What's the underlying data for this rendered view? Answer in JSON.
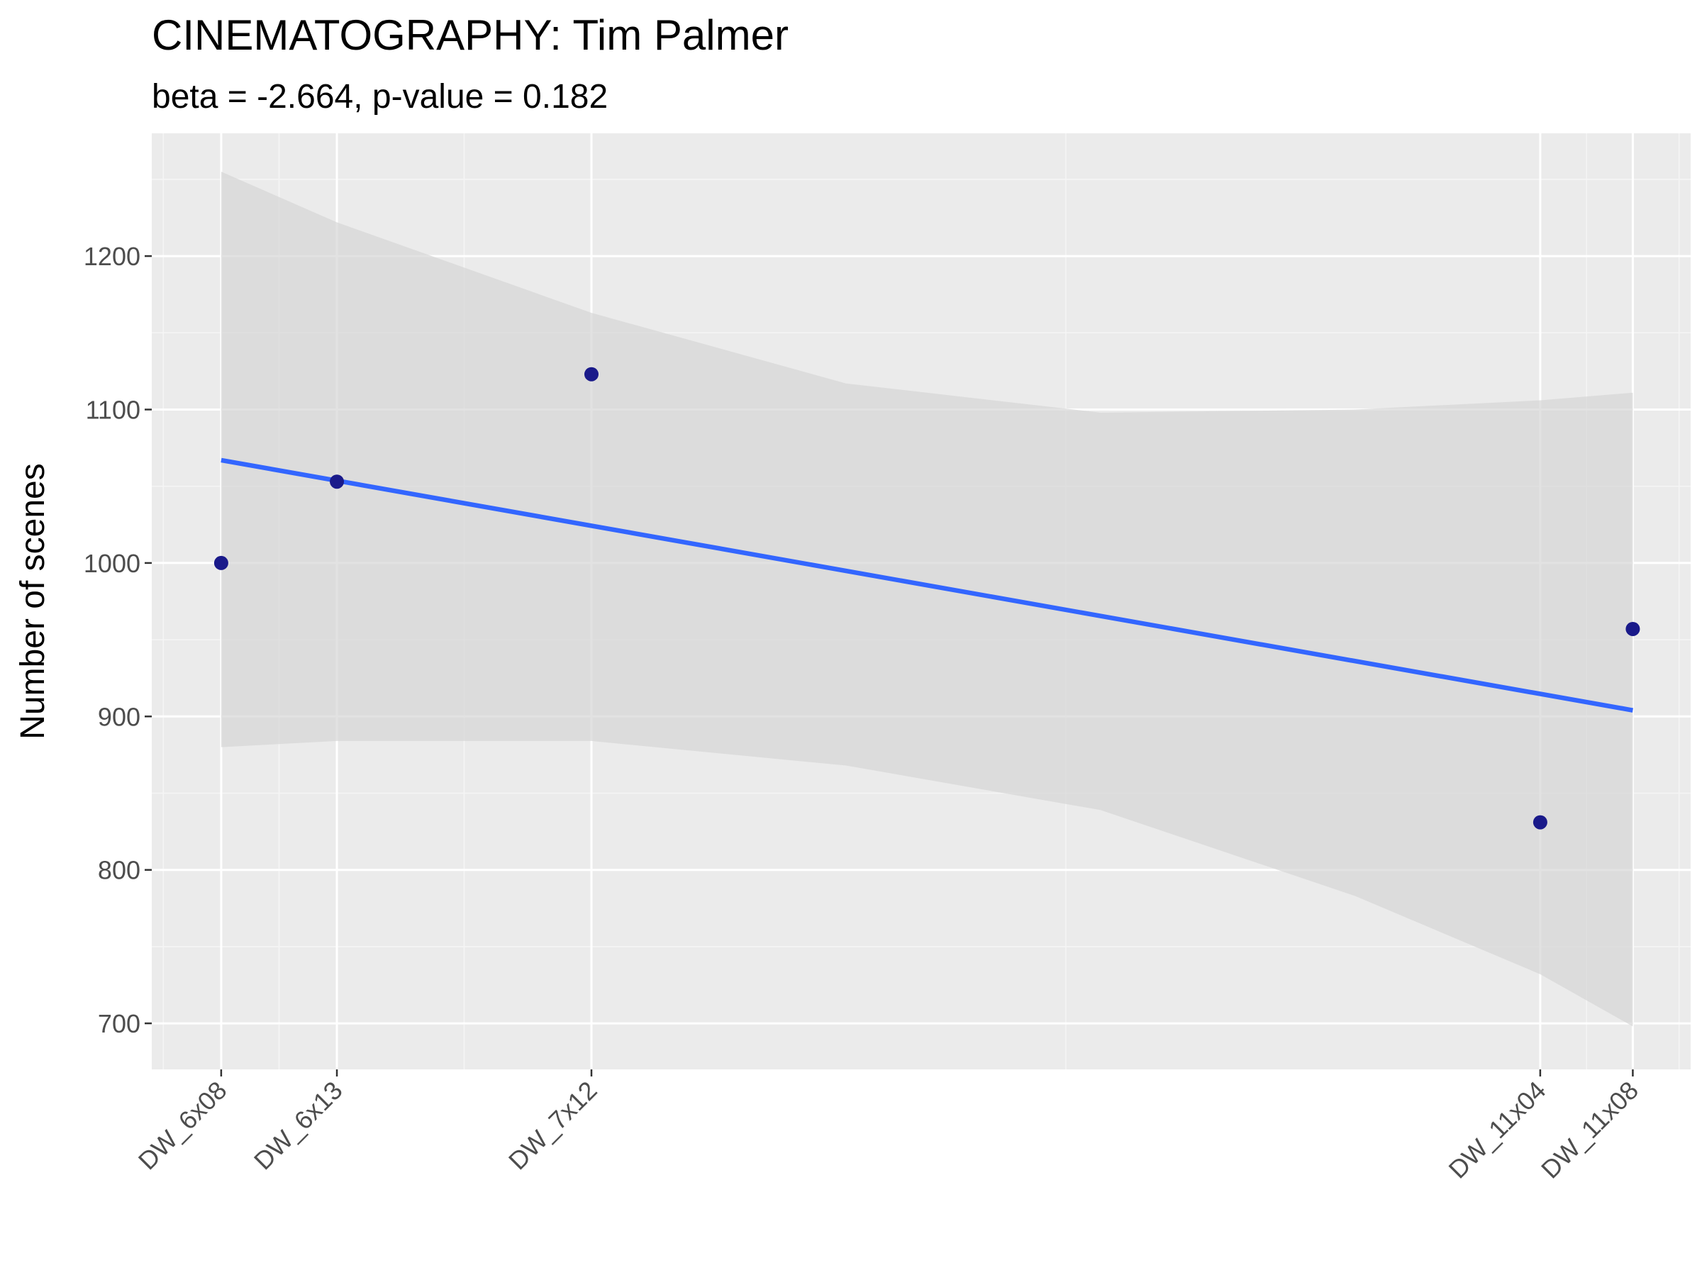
{
  "chart_data": {
    "type": "scatter",
    "title": "CINEMATOGRAPHY: Tim Palmer",
    "subtitle": "beta = -2.664, p-value = 0.182",
    "xlabel": "",
    "ylabel": "Number of scenes",
    "x_ticks": [
      {
        "label": "DW_6x08",
        "x": 8
      },
      {
        "label": "DW_6x13",
        "x": 13
      },
      {
        "label": "DW_7x12",
        "x": 24
      },
      {
        "label": "DW_11x04",
        "x": 65
      },
      {
        "label": "DW_11x08",
        "x": 69
      }
    ],
    "xlim": [
      5,
      71.5
    ],
    "ylim": [
      670,
      1280
    ],
    "y_ticks": [
      700,
      800,
      900,
      1000,
      1100,
      1200
    ],
    "points": [
      {
        "label": "DW_6x08",
        "x": 8,
        "y": 1000
      },
      {
        "label": "DW_6x13",
        "x": 13,
        "y": 1053
      },
      {
        "label": "DW_7x12",
        "x": 24,
        "y": 1123
      },
      {
        "label": "DW_11x04",
        "x": 65,
        "y": 831
      },
      {
        "label": "DW_11x08",
        "x": 69,
        "y": 957
      }
    ],
    "trend_line": {
      "x": [
        8,
        69
      ],
      "y": [
        1067,
        904
      ]
    },
    "confidence_band": {
      "x": [
        8,
        13,
        24,
        35,
        46,
        57,
        65,
        69
      ],
      "upper": [
        1255,
        1222,
        1163,
        1117,
        1098,
        1100,
        1106,
        1111
      ],
      "lower": [
        880,
        884,
        884,
        868,
        839,
        783,
        732,
        698
      ]
    },
    "grid": true,
    "colors": {
      "panel_background": "#ebebeb",
      "grid_major": "#ffffff",
      "grid_minor": "#f5f5f5",
      "point": "#1a1a8a",
      "trend_line": "#3366ff",
      "confidence_band": "#d6d6d6"
    }
  }
}
